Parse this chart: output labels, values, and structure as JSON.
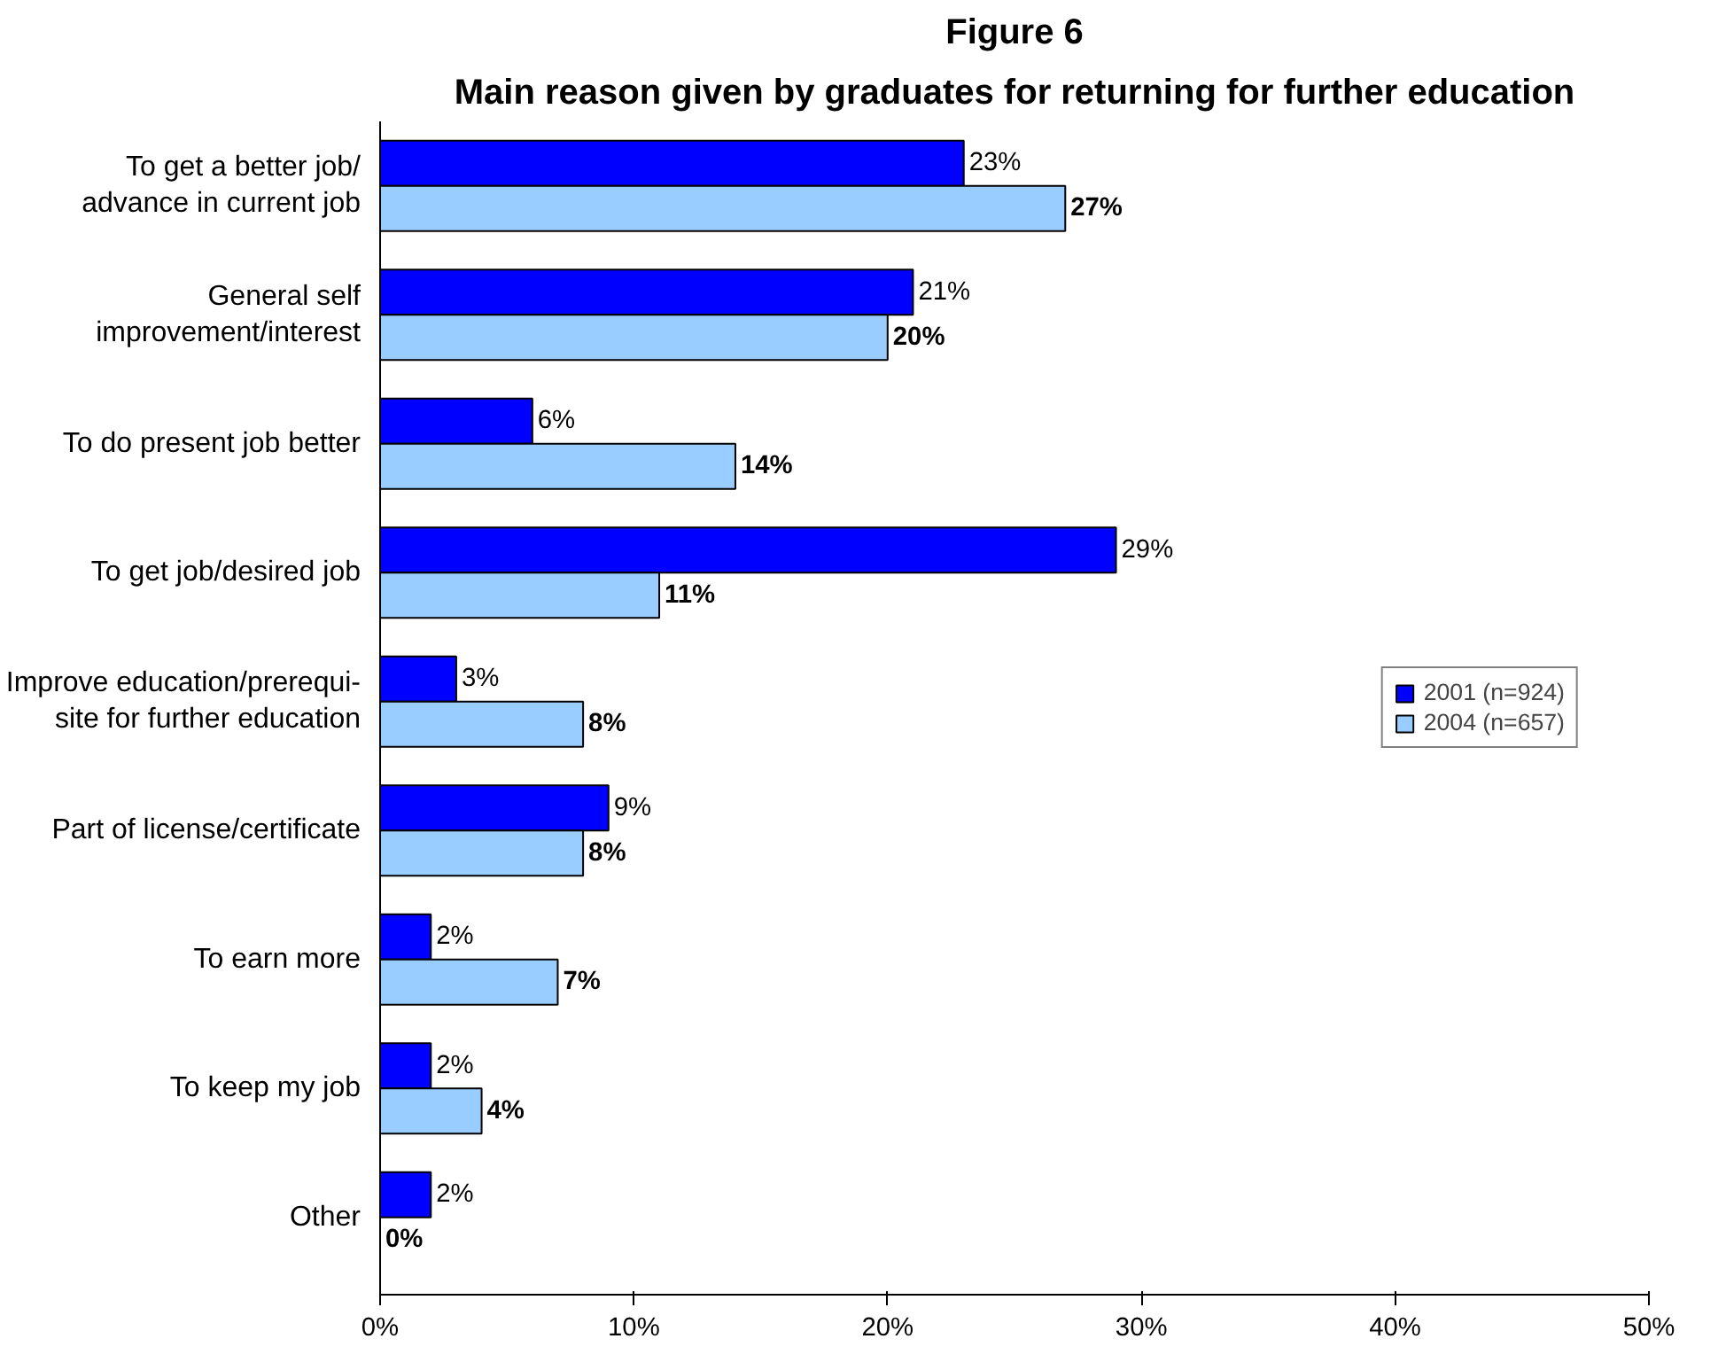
{
  "chart_data": {
    "type": "bar",
    "orientation": "horizontal",
    "title": "Figure 6",
    "subtitle": "Main reason given by graduates for returning for further education",
    "categories": [
      "To get a better job/\nadvance in current job",
      "General self\nimprovement/interest",
      "To do present job better",
      "To get job/desired job",
      "Improve education/prerequi-\nsite for further education",
      "Part of license/certificate",
      "To earn more",
      "To keep my job",
      "Other"
    ],
    "series": [
      {
        "name": "2001 (n=924)",
        "color": "#0000ff",
        "values": [
          23,
          21,
          6,
          29,
          3,
          9,
          2,
          2,
          2
        ],
        "value_labels": [
          "23%",
          "21%",
          "6%",
          "29%",
          "3%",
          "9%",
          "2%",
          "2%",
          "2%"
        ]
      },
      {
        "name": "2004 (n=657)",
        "color": "#99ccff",
        "values": [
          27,
          20,
          14,
          11,
          8,
          8,
          7,
          4,
          0
        ],
        "value_labels": [
          "27%",
          "20%",
          "14%",
          "11%",
          "8%",
          "8%",
          "7%",
          "4%",
          "0%"
        ]
      }
    ],
    "xlim": [
      0,
      50
    ],
    "xticks": [
      {
        "value": 0,
        "label": "0%"
      },
      {
        "value": 10,
        "label": "10%"
      },
      {
        "value": 20,
        "label": "20%"
      },
      {
        "value": 30,
        "label": "30%"
      },
      {
        "value": 40,
        "label": "40%"
      },
      {
        "value": 50,
        "label": "50%"
      }
    ],
    "grid": false,
    "legend": "right"
  }
}
